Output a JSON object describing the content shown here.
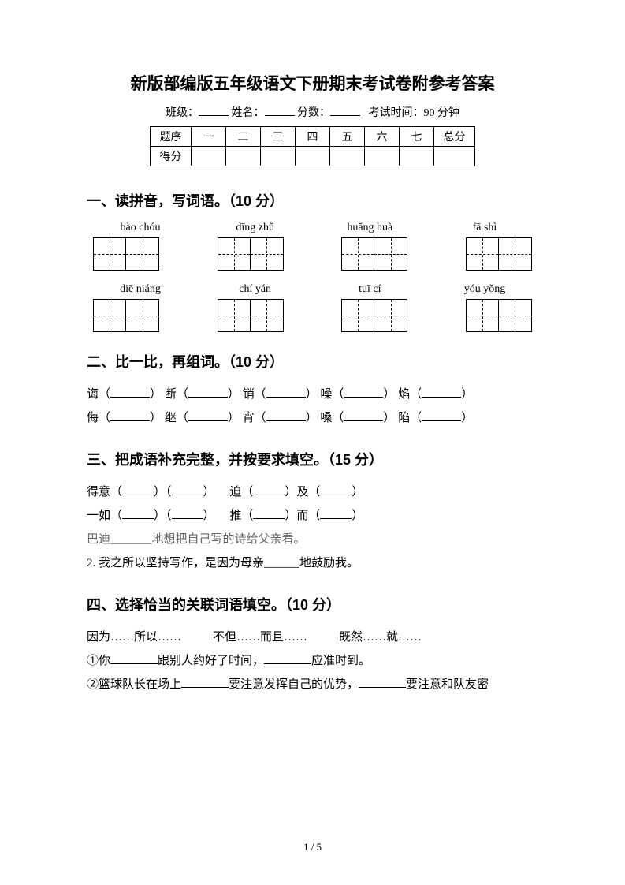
{
  "title": "新版部编版五年级语文下册期末考试卷附参考答案",
  "info": {
    "class_label": "班级：",
    "name_label": "姓名：",
    "score_label": "分数：",
    "time_label": "考试时间：90 分钟"
  },
  "score_table": {
    "header_label": "题序",
    "score_label": "得分",
    "cols": [
      "一",
      "二",
      "三",
      "四",
      "五",
      "六",
      "七",
      "总分"
    ]
  },
  "section1": {
    "title": "一、读拼音，写词语。（10 分）",
    "row1": [
      "bào chóu",
      "dīng zhǔ",
      "huǎng huà",
      "fā shì"
    ],
    "row2": [
      "diē niáng",
      "chí yán",
      "tuī cí",
      "yóu yǒng"
    ]
  },
  "section2": {
    "title": "二、比一比，再组词。（10 分）",
    "line1_chars": [
      "诲",
      "断",
      "销",
      "噪",
      "焰"
    ],
    "line2_chars": [
      "侮",
      "继",
      "宵",
      "嗓",
      "陷"
    ]
  },
  "section3": {
    "title": "三、把成语补充完整，并按要求填空。（15 分）",
    "line1_a": "得意",
    "line1_b": "迫",
    "line1_c": "及",
    "line2_a": "一如",
    "line2_b": "推",
    "line2_c": "而",
    "line3": "巴迪_______地想把自己写的诗给父亲看。",
    "line4": "2. 我之所以坚持写作，是因为母亲______地鼓励我。"
  },
  "section4": {
    "title": "四、选择恰当的关联词语填空。（10 分）",
    "conj1": "因为……所以……",
    "conj2": "不但……而且……",
    "conj3": "既然……就……",
    "line1_a": "①你",
    "line1_b": "跟别人约好了时间，",
    "line1_c": "应准时到。",
    "line2_a": "②篮球队长在场上",
    "line2_b": "要注意发挥自己的优势，",
    "line2_c": "要注意和队友密"
  },
  "footer": "1 / 5"
}
